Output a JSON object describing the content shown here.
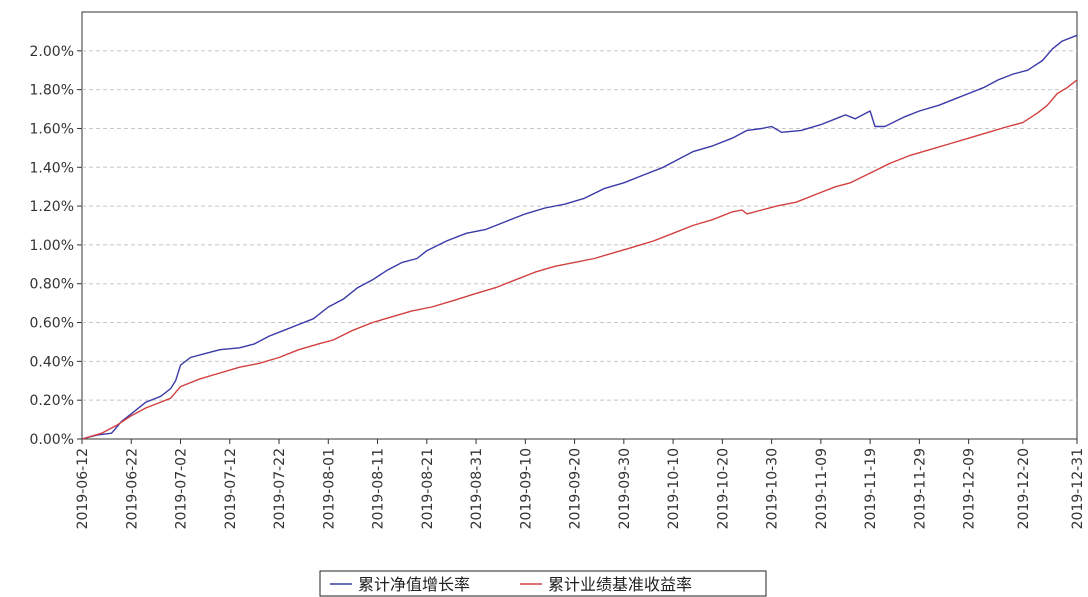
{
  "chart_data": {
    "type": "line",
    "title": "",
    "xlabel": "",
    "ylabel": "",
    "ylim": [
      0,
      2.2
    ],
    "grid": true,
    "legend_position": "bottom-center",
    "y_ticks": [
      "0.00%",
      "0.20%",
      "0.40%",
      "0.60%",
      "0.80%",
      "1.00%",
      "1.20%",
      "1.40%",
      "1.60%",
      "1.80%",
      "2.00%"
    ],
    "y_tick_values": [
      0,
      0.2,
      0.4,
      0.6,
      0.8,
      1.0,
      1.2,
      1.4,
      1.6,
      1.8,
      2.0
    ],
    "x_ticks": [
      "2019-06-12",
      "2019-06-22",
      "2019-07-02",
      "2019-07-12",
      "2019-07-22",
      "2019-08-01",
      "2019-08-11",
      "2019-08-21",
      "2019-08-31",
      "2019-09-10",
      "2019-09-20",
      "2019-09-30",
      "2019-10-10",
      "2019-10-20",
      "2019-10-30",
      "2019-11-09",
      "2019-11-19",
      "2019-11-29",
      "2019-12-09",
      "2019-12-20",
      "2019-12-31"
    ],
    "x_range": [
      "2019-06-12",
      "2019-12-31"
    ],
    "series": [
      {
        "name": "累计净值增长率",
        "color": "#3a3aa8",
        "points": [
          [
            "2019-06-12",
            0.0
          ],
          [
            "2019-06-15",
            0.02
          ],
          [
            "2019-06-18",
            0.03
          ],
          [
            "2019-06-20",
            0.09
          ],
          [
            "2019-06-22",
            0.13
          ],
          [
            "2019-06-25",
            0.19
          ],
          [
            "2019-06-28",
            0.22
          ],
          [
            "2019-06-30",
            0.26
          ],
          [
            "2019-07-01",
            0.3
          ],
          [
            "2019-07-02",
            0.38
          ],
          [
            "2019-07-04",
            0.42
          ],
          [
            "2019-07-07",
            0.44
          ],
          [
            "2019-07-10",
            0.46
          ],
          [
            "2019-07-14",
            0.47
          ],
          [
            "2019-07-17",
            0.49
          ],
          [
            "2019-07-20",
            0.53
          ],
          [
            "2019-07-23",
            0.56
          ],
          [
            "2019-07-26",
            0.59
          ],
          [
            "2019-07-29",
            0.62
          ],
          [
            "2019-08-01",
            0.68
          ],
          [
            "2019-08-04",
            0.72
          ],
          [
            "2019-08-07",
            0.78
          ],
          [
            "2019-08-10",
            0.82
          ],
          [
            "2019-08-13",
            0.87
          ],
          [
            "2019-08-16",
            0.91
          ],
          [
            "2019-08-19",
            0.93
          ],
          [
            "2019-08-21",
            0.97
          ],
          [
            "2019-08-25",
            1.02
          ],
          [
            "2019-08-29",
            1.06
          ],
          [
            "2019-09-02",
            1.08
          ],
          [
            "2019-09-06",
            1.12
          ],
          [
            "2019-09-10",
            1.16
          ],
          [
            "2019-09-14",
            1.19
          ],
          [
            "2019-09-18",
            1.21
          ],
          [
            "2019-09-22",
            1.24
          ],
          [
            "2019-09-26",
            1.29
          ],
          [
            "2019-09-30",
            1.32
          ],
          [
            "2019-10-04",
            1.36
          ],
          [
            "2019-10-08",
            1.4
          ],
          [
            "2019-10-11",
            1.44
          ],
          [
            "2019-10-14",
            1.48
          ],
          [
            "2019-10-18",
            1.51
          ],
          [
            "2019-10-22",
            1.55
          ],
          [
            "2019-10-25",
            1.59
          ],
          [
            "2019-10-28",
            1.6
          ],
          [
            "2019-10-30",
            1.61
          ],
          [
            "2019-11-01",
            1.58
          ],
          [
            "2019-11-05",
            1.59
          ],
          [
            "2019-11-09",
            1.62
          ],
          [
            "2019-11-12",
            1.65
          ],
          [
            "2019-11-14",
            1.67
          ],
          [
            "2019-11-16",
            1.65
          ],
          [
            "2019-11-19",
            1.69
          ],
          [
            "2019-11-20",
            1.61
          ],
          [
            "2019-11-22",
            1.61
          ],
          [
            "2019-11-26",
            1.66
          ],
          [
            "2019-11-29",
            1.69
          ],
          [
            "2019-12-03",
            1.72
          ],
          [
            "2019-12-06",
            1.75
          ],
          [
            "2019-12-09",
            1.78
          ],
          [
            "2019-12-12",
            1.81
          ],
          [
            "2019-12-15",
            1.85
          ],
          [
            "2019-12-18",
            1.88
          ],
          [
            "2019-12-21",
            1.9
          ],
          [
            "2019-12-24",
            1.95
          ],
          [
            "2019-12-26",
            2.01
          ],
          [
            "2019-12-28",
            2.05
          ],
          [
            "2019-12-31",
            2.08
          ]
        ]
      },
      {
        "name": "累计业绩基准收益率",
        "color": "#d24040",
        "points": [
          [
            "2019-06-12",
            0.0
          ],
          [
            "2019-06-16",
            0.03
          ],
          [
            "2019-06-19",
            0.07
          ],
          [
            "2019-06-22",
            0.12
          ],
          [
            "2019-06-25",
            0.16
          ],
          [
            "2019-06-28",
            0.19
          ],
          [
            "2019-06-30",
            0.21
          ],
          [
            "2019-07-02",
            0.27
          ],
          [
            "2019-07-06",
            0.31
          ],
          [
            "2019-07-10",
            0.34
          ],
          [
            "2019-07-14",
            0.37
          ],
          [
            "2019-07-18",
            0.39
          ],
          [
            "2019-07-22",
            0.42
          ],
          [
            "2019-07-26",
            0.46
          ],
          [
            "2019-07-30",
            0.49
          ],
          [
            "2019-08-02",
            0.51
          ],
          [
            "2019-08-06",
            0.56
          ],
          [
            "2019-08-10",
            0.6
          ],
          [
            "2019-08-14",
            0.63
          ],
          [
            "2019-08-18",
            0.66
          ],
          [
            "2019-08-22",
            0.68
          ],
          [
            "2019-08-26",
            0.71
          ],
          [
            "2019-08-31",
            0.75
          ],
          [
            "2019-09-04",
            0.78
          ],
          [
            "2019-09-08",
            0.82
          ],
          [
            "2019-09-12",
            0.86
          ],
          [
            "2019-09-16",
            0.89
          ],
          [
            "2019-09-20",
            0.91
          ],
          [
            "2019-09-24",
            0.93
          ],
          [
            "2019-09-28",
            0.96
          ],
          [
            "2019-10-02",
            0.99
          ],
          [
            "2019-10-06",
            1.02
          ],
          [
            "2019-10-10",
            1.06
          ],
          [
            "2019-10-14",
            1.1
          ],
          [
            "2019-10-18",
            1.13
          ],
          [
            "2019-10-22",
            1.17
          ],
          [
            "2019-10-24",
            1.18
          ],
          [
            "2019-10-25",
            1.16
          ],
          [
            "2019-10-28",
            1.18
          ],
          [
            "2019-10-31",
            1.2
          ],
          [
            "2019-11-04",
            1.22
          ],
          [
            "2019-11-08",
            1.26
          ],
          [
            "2019-11-12",
            1.3
          ],
          [
            "2019-11-15",
            1.32
          ],
          [
            "2019-11-19",
            1.37
          ],
          [
            "2019-11-23",
            1.42
          ],
          [
            "2019-11-27",
            1.46
          ],
          [
            "2019-12-01",
            1.49
          ],
          [
            "2019-12-05",
            1.52
          ],
          [
            "2019-12-09",
            1.55
          ],
          [
            "2019-12-13",
            1.58
          ],
          [
            "2019-12-17",
            1.61
          ],
          [
            "2019-12-20",
            1.63
          ],
          [
            "2019-12-23",
            1.68
          ],
          [
            "2019-12-25",
            1.72
          ],
          [
            "2019-12-27",
            1.78
          ],
          [
            "2019-12-29",
            1.81
          ],
          [
            "2019-12-31",
            1.85
          ]
        ]
      }
    ]
  }
}
